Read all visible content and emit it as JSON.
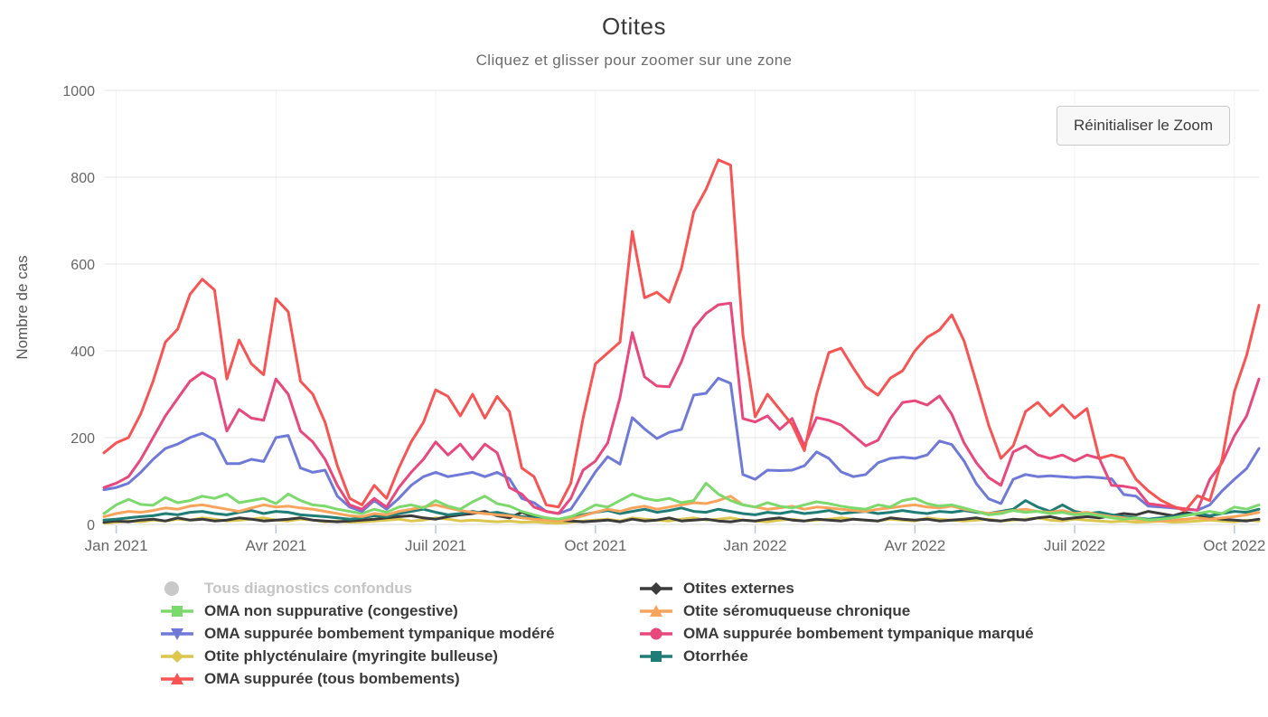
{
  "page": {
    "title": "Otites",
    "subtitle": "Cliquez et glisser pour zoomer sur une zone",
    "reset_zoom_button": "Réinitialiser le Zoom"
  },
  "colors": {
    "grid": "#e6e6e6",
    "axis_line": "#d9d9d9",
    "axis_tick": "#b9c7e2",
    "tick_text": "#666666",
    "axis_title_text": "#555555",
    "disabled_legend": "#c5c5c5"
  },
  "chart_data": {
    "type": "line",
    "title": "Otites",
    "subtitle": "Cliquez et glisser pour zoomer sur une zone",
    "xlabel": "",
    "ylabel": "Nombre de cas",
    "ylim": [
      0,
      1000
    ],
    "y_ticks": [
      0,
      200,
      400,
      600,
      800,
      1000
    ],
    "grid": true,
    "legend_position": "bottom",
    "x_unit": "week",
    "n_points": 95,
    "x_range_note": "weekly data, late Dec 2020 through late Oct 2022",
    "x_tick_indices": [
      1,
      14,
      27,
      40,
      53,
      66,
      79,
      92
    ],
    "x_tick_labels": [
      "Jan 2021",
      "Avr 2021",
      "Juil 2021",
      "Oct 2021",
      "Jan 2022",
      "Avr 2022",
      "Juil 2022",
      "Oct 2022"
    ],
    "hidden_series": [
      "Tous diagnostics confondus"
    ],
    "legend_columns": [
      [
        "Tous diagnostics confondus",
        "OMA non suppurative (congestive)",
        "OMA suppurée bombement tympanique modéré",
        "Otite phlycténulaire (myringite bulleuse)",
        "OMA suppurée (tous bombements)"
      ],
      [
        "Otites externes",
        "Otite séromuqueuse chronique",
        "OMA suppurée bombement tympanique marqué",
        "Otorrhée"
      ]
    ],
    "series": [
      {
        "name": "Tous diagnostics confondus",
        "color": "#c9c9c9",
        "marker": "circle",
        "hidden": true,
        "values": []
      },
      {
        "name": "Otite phlycténulaire (myringite bulleuse)",
        "color": "#dcc64d",
        "marker": "diamond",
        "hidden": false,
        "values": [
          3,
          5,
          8,
          6,
          10,
          8,
          12,
          10,
          15,
          12,
          8,
          10,
          12,
          15,
          10,
          8,
          12,
          10,
          6,
          8,
          5,
          6,
          8,
          10,
          12,
          8,
          10,
          15,
          12,
          8,
          10,
          8,
          6,
          8,
          5,
          6,
          4,
          3,
          5,
          8,
          10,
          12,
          8,
          15,
          12,
          10,
          8,
          12,
          15,
          10,
          12,
          15,
          10,
          8,
          6,
          10,
          12,
          8,
          10,
          12,
          15,
          12,
          10,
          8,
          12,
          10,
          8,
          15,
          12,
          10,
          8,
          10,
          12,
          8,
          10,
          12,
          15,
          10,
          8,
          12,
          10,
          8,
          6,
          8,
          5,
          6,
          8,
          5,
          6,
          8,
          10,
          8,
          6,
          10,
          8
        ]
      },
      {
        "name": "Otites externes",
        "color": "#3b3b3b",
        "marker": "diamond",
        "hidden": false,
        "values": [
          5,
          8,
          6,
          10,
          12,
          8,
          15,
          10,
          12,
          8,
          10,
          15,
          12,
          8,
          10,
          12,
          15,
          10,
          8,
          6,
          8,
          10,
          12,
          15,
          18,
          20,
          15,
          12,
          18,
          22,
          25,
          30,
          20,
          15,
          28,
          18,
          12,
          10,
          8,
          6,
          8,
          10,
          6,
          12,
          8,
          10,
          15,
          8,
          10,
          12,
          8,
          6,
          10,
          8,
          12,
          15,
          10,
          8,
          12,
          10,
          8,
          12,
          10,
          8,
          15,
          12,
          10,
          12,
          8,
          10,
          12,
          15,
          10,
          8,
          12,
          10,
          15,
          18,
          12,
          15,
          18,
          15,
          20,
          25,
          22,
          30,
          25,
          20,
          28,
          22,
          15,
          12,
          10,
          8,
          12
        ]
      },
      {
        "name": "Otorrhée",
        "color": "#207d76",
        "marker": "square",
        "hidden": false,
        "values": [
          10,
          12,
          15,
          18,
          20,
          25,
          22,
          28,
          30,
          25,
          22,
          28,
          32,
          25,
          30,
          28,
          22,
          20,
          18,
          15,
          12,
          15,
          20,
          18,
          25,
          30,
          35,
          28,
          22,
          25,
          30,
          25,
          28,
          22,
          18,
          15,
          12,
          10,
          15,
          22,
          28,
          32,
          25,
          30,
          35,
          28,
          32,
          38,
          30,
          28,
          35,
          30,
          25,
          22,
          28,
          25,
          30,
          25,
          28,
          32,
          25,
          28,
          30,
          25,
          28,
          32,
          28,
          25,
          30,
          28,
          32,
          28,
          25,
          30,
          35,
          55,
          40,
          30,
          45,
          30,
          25,
          28,
          22,
          18,
          15,
          12,
          15,
          18,
          22,
          25,
          20,
          25,
          30,
          28,
          35
        ]
      },
      {
        "name": "Otite séromuqueuse chronique",
        "color": "#f9a45c",
        "marker": "triangle-up",
        "hidden": false,
        "values": [
          18,
          25,
          30,
          28,
          32,
          38,
          35,
          42,
          45,
          40,
          35,
          30,
          38,
          45,
          40,
          42,
          38,
          35,
          30,
          25,
          20,
          18,
          25,
          22,
          30,
          35,
          40,
          45,
          38,
          32,
          28,
          25,
          22,
          20,
          15,
          12,
          10,
          8,
          12,
          20,
          28,
          35,
          30,
          38,
          42,
          35,
          40,
          45,
          50,
          48,
          55,
          65,
          45,
          40,
          35,
          38,
          42,
          35,
          40,
          38,
          35,
          32,
          30,
          35,
          38,
          42,
          45,
          40,
          38,
          42,
          35,
          30,
          25,
          28,
          32,
          35,
          30,
          28,
          32,
          25,
          28,
          22,
          18,
          15,
          12,
          10,
          8,
          10,
          12,
          15,
          12,
          15,
          18,
          22,
          28
        ]
      },
      {
        "name": "OMA non suppurative (congestive)",
        "color": "#7cd96c",
        "marker": "square",
        "hidden": false,
        "values": [
          25,
          45,
          58,
          46,
          44,
          62,
          50,
          55,
          65,
          60,
          70,
          50,
          55,
          60,
          48,
          70,
          55,
          45,
          42,
          35,
          30,
          25,
          35,
          28,
          40,
          45,
          38,
          55,
          42,
          35,
          52,
          65,
          48,
          42,
          30,
          22,
          15,
          12,
          18,
          30,
          45,
          40,
          55,
          70,
          60,
          55,
          60,
          50,
          55,
          95,
          70,
          55,
          45,
          40,
          50,
          42,
          38,
          45,
          52,
          48,
          42,
          38,
          35,
          45,
          40,
          55,
          60,
          48,
          42,
          45,
          38,
          30,
          22,
          25,
          32,
          28,
          30,
          25,
          28,
          22,
          25,
          20,
          15,
          12,
          15,
          10,
          12,
          15,
          20,
          25,
          30,
          25,
          40,
          35,
          45
        ]
      },
      {
        "name": "OMA suppurée bombement tympanique modéré",
        "color": "#6e79d8",
        "marker": "triangle-down",
        "hidden": false,
        "values": [
          80,
          85,
          95,
          120,
          150,
          175,
          185,
          200,
          210,
          195,
          140,
          140,
          150,
          145,
          200,
          205,
          130,
          120,
          125,
          65,
          40,
          30,
          55,
          35,
          60,
          90,
          110,
          120,
          110,
          115,
          120,
          110,
          120,
          105,
          60,
          50,
          30,
          25,
          35,
          77,
          121,
          156,
          139,
          246,
          220,
          198,
          212,
          219,
          298,
          302,
          337,
          325,
          115,
          104,
          125,
          124,
          125,
          135,
          167,
          152,
          121,
          110,
          115,
          142,
          152,
          155,
          152,
          160,
          192,
          184,
          146,
          94,
          59,
          48,
          104,
          115,
          110,
          112,
          110,
          108,
          110,
          108,
          105,
          69,
          65,
          42,
          40,
          38,
          35,
          33,
          45,
          77,
          104,
          129,
          175
        ]
      },
      {
        "name": "OMA suppurée bombement tympanique marqué",
        "color": "#e8487b",
        "marker": "circle",
        "hidden": false,
        "values": [
          85,
          95,
          110,
          150,
          200,
          250,
          290,
          330,
          350,
          335,
          215,
          265,
          245,
          240,
          335,
          300,
          215,
          190,
          150,
          90,
          45,
          35,
          60,
          40,
          85,
          120,
          150,
          190,
          160,
          185,
          150,
          185,
          165,
          85,
          70,
          40,
          30,
          25,
          60,
          125,
          146,
          188,
          292,
          442,
          340,
          319,
          317,
          375,
          452,
          486,
          506,
          510,
          244,
          236,
          250,
          219,
          244,
          181,
          246,
          240,
          229,
          205,
          181,
          194,
          244,
          281,
          285,
          275,
          296,
          254,
          188,
          142,
          108,
          90,
          167,
          181,
          160,
          152,
          160,
          146,
          160,
          152,
          90,
          88,
          83,
          48,
          44,
          40,
          36,
          33,
          104,
          142,
          204,
          250,
          335
        ]
      },
      {
        "name": "OMA suppurée (tous bombements)",
        "color": "#f75453",
        "marker": "triangle-up",
        "hidden": false,
        "values": [
          165,
          188,
          200,
          255,
          330,
          420,
          450,
          530,
          565,
          540,
          335,
          425,
          370,
          345,
          520,
          490,
          330,
          300,
          235,
          135,
          60,
          45,
          90,
          60,
          130,
          190,
          235,
          310,
          295,
          250,
          300,
          245,
          295,
          260,
          130,
          110,
          45,
          40,
          95,
          245,
          370,
          395,
          420,
          675,
          522,
          535,
          512,
          590,
          720,
          772,
          840,
          828,
          437,
          248,
          300,
          265,
          230,
          170,
          300,
          396,
          406,
          360,
          317,
          298,
          337,
          354,
          400,
          431,
          448,
          483,
          423,
          327,
          229,
          152,
          181,
          260,
          281,
          250,
          275,
          245,
          267,
          152,
          160,
          152,
          104,
          77,
          56,
          42,
          31,
          66,
          55,
          150,
          306,
          390,
          505
        ]
      }
    ]
  }
}
